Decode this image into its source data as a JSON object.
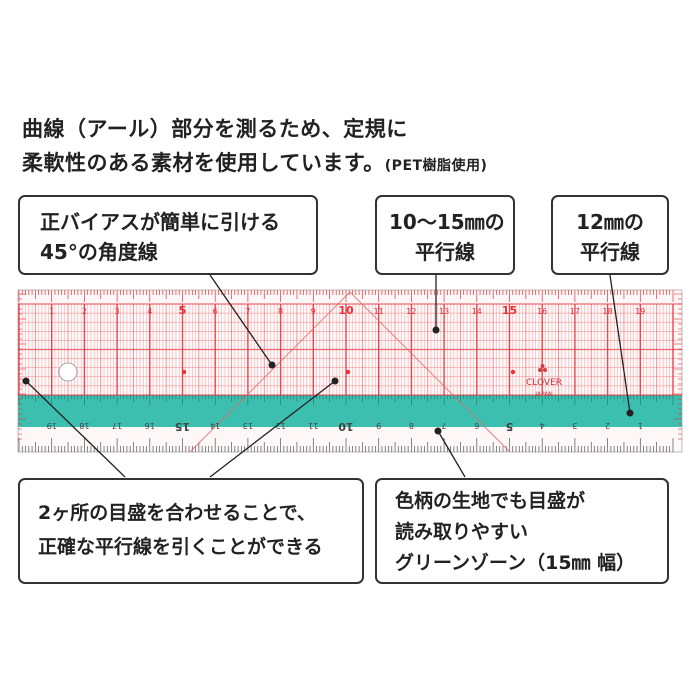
{
  "intro": {
    "line1": "曲線（アール）部分を測るため、定規に",
    "line2_main": "柔軟性のある素材を使用しています。",
    "line2_small": "(PET樹脂使用)"
  },
  "callouts": {
    "bias": {
      "line1": "正バイアスが簡単に引ける",
      "line2": "45°の角度線"
    },
    "parallel_10_15": {
      "line1": "10～15㎜の",
      "line2": "平行線"
    },
    "parallel_12": {
      "line1": "12㎜の",
      "line2": "平行線"
    },
    "align": {
      "line1": "2ヶ所の目盛を合わせることで、",
      "line2": "正確な平行線を引くことができる"
    },
    "green_zone": {
      "line1": "色柄の生地でも目盛が",
      "line2": "読み取りやすい",
      "line3": "グリーンゾーン（15㎜ 幅）"
    }
  },
  "ruler": {
    "brand": "CLOVER",
    "origin": "JAPAN",
    "top_numbers": [
      "1",
      "2",
      "3",
      "4",
      "5",
      "6",
      "7",
      "8",
      "9",
      "10",
      "11",
      "12",
      "13",
      "14",
      "15",
      "16",
      "17",
      "18",
      "19"
    ],
    "bottom_numbers": [
      "19",
      "18",
      "17",
      "16",
      "15",
      "14",
      "13",
      "12",
      "11",
      "10",
      "9",
      "8",
      "7",
      "6",
      "5",
      "4",
      "3",
      "2",
      "1"
    ],
    "red_color": "#e8323a",
    "green_color": "#3dbfb0"
  }
}
